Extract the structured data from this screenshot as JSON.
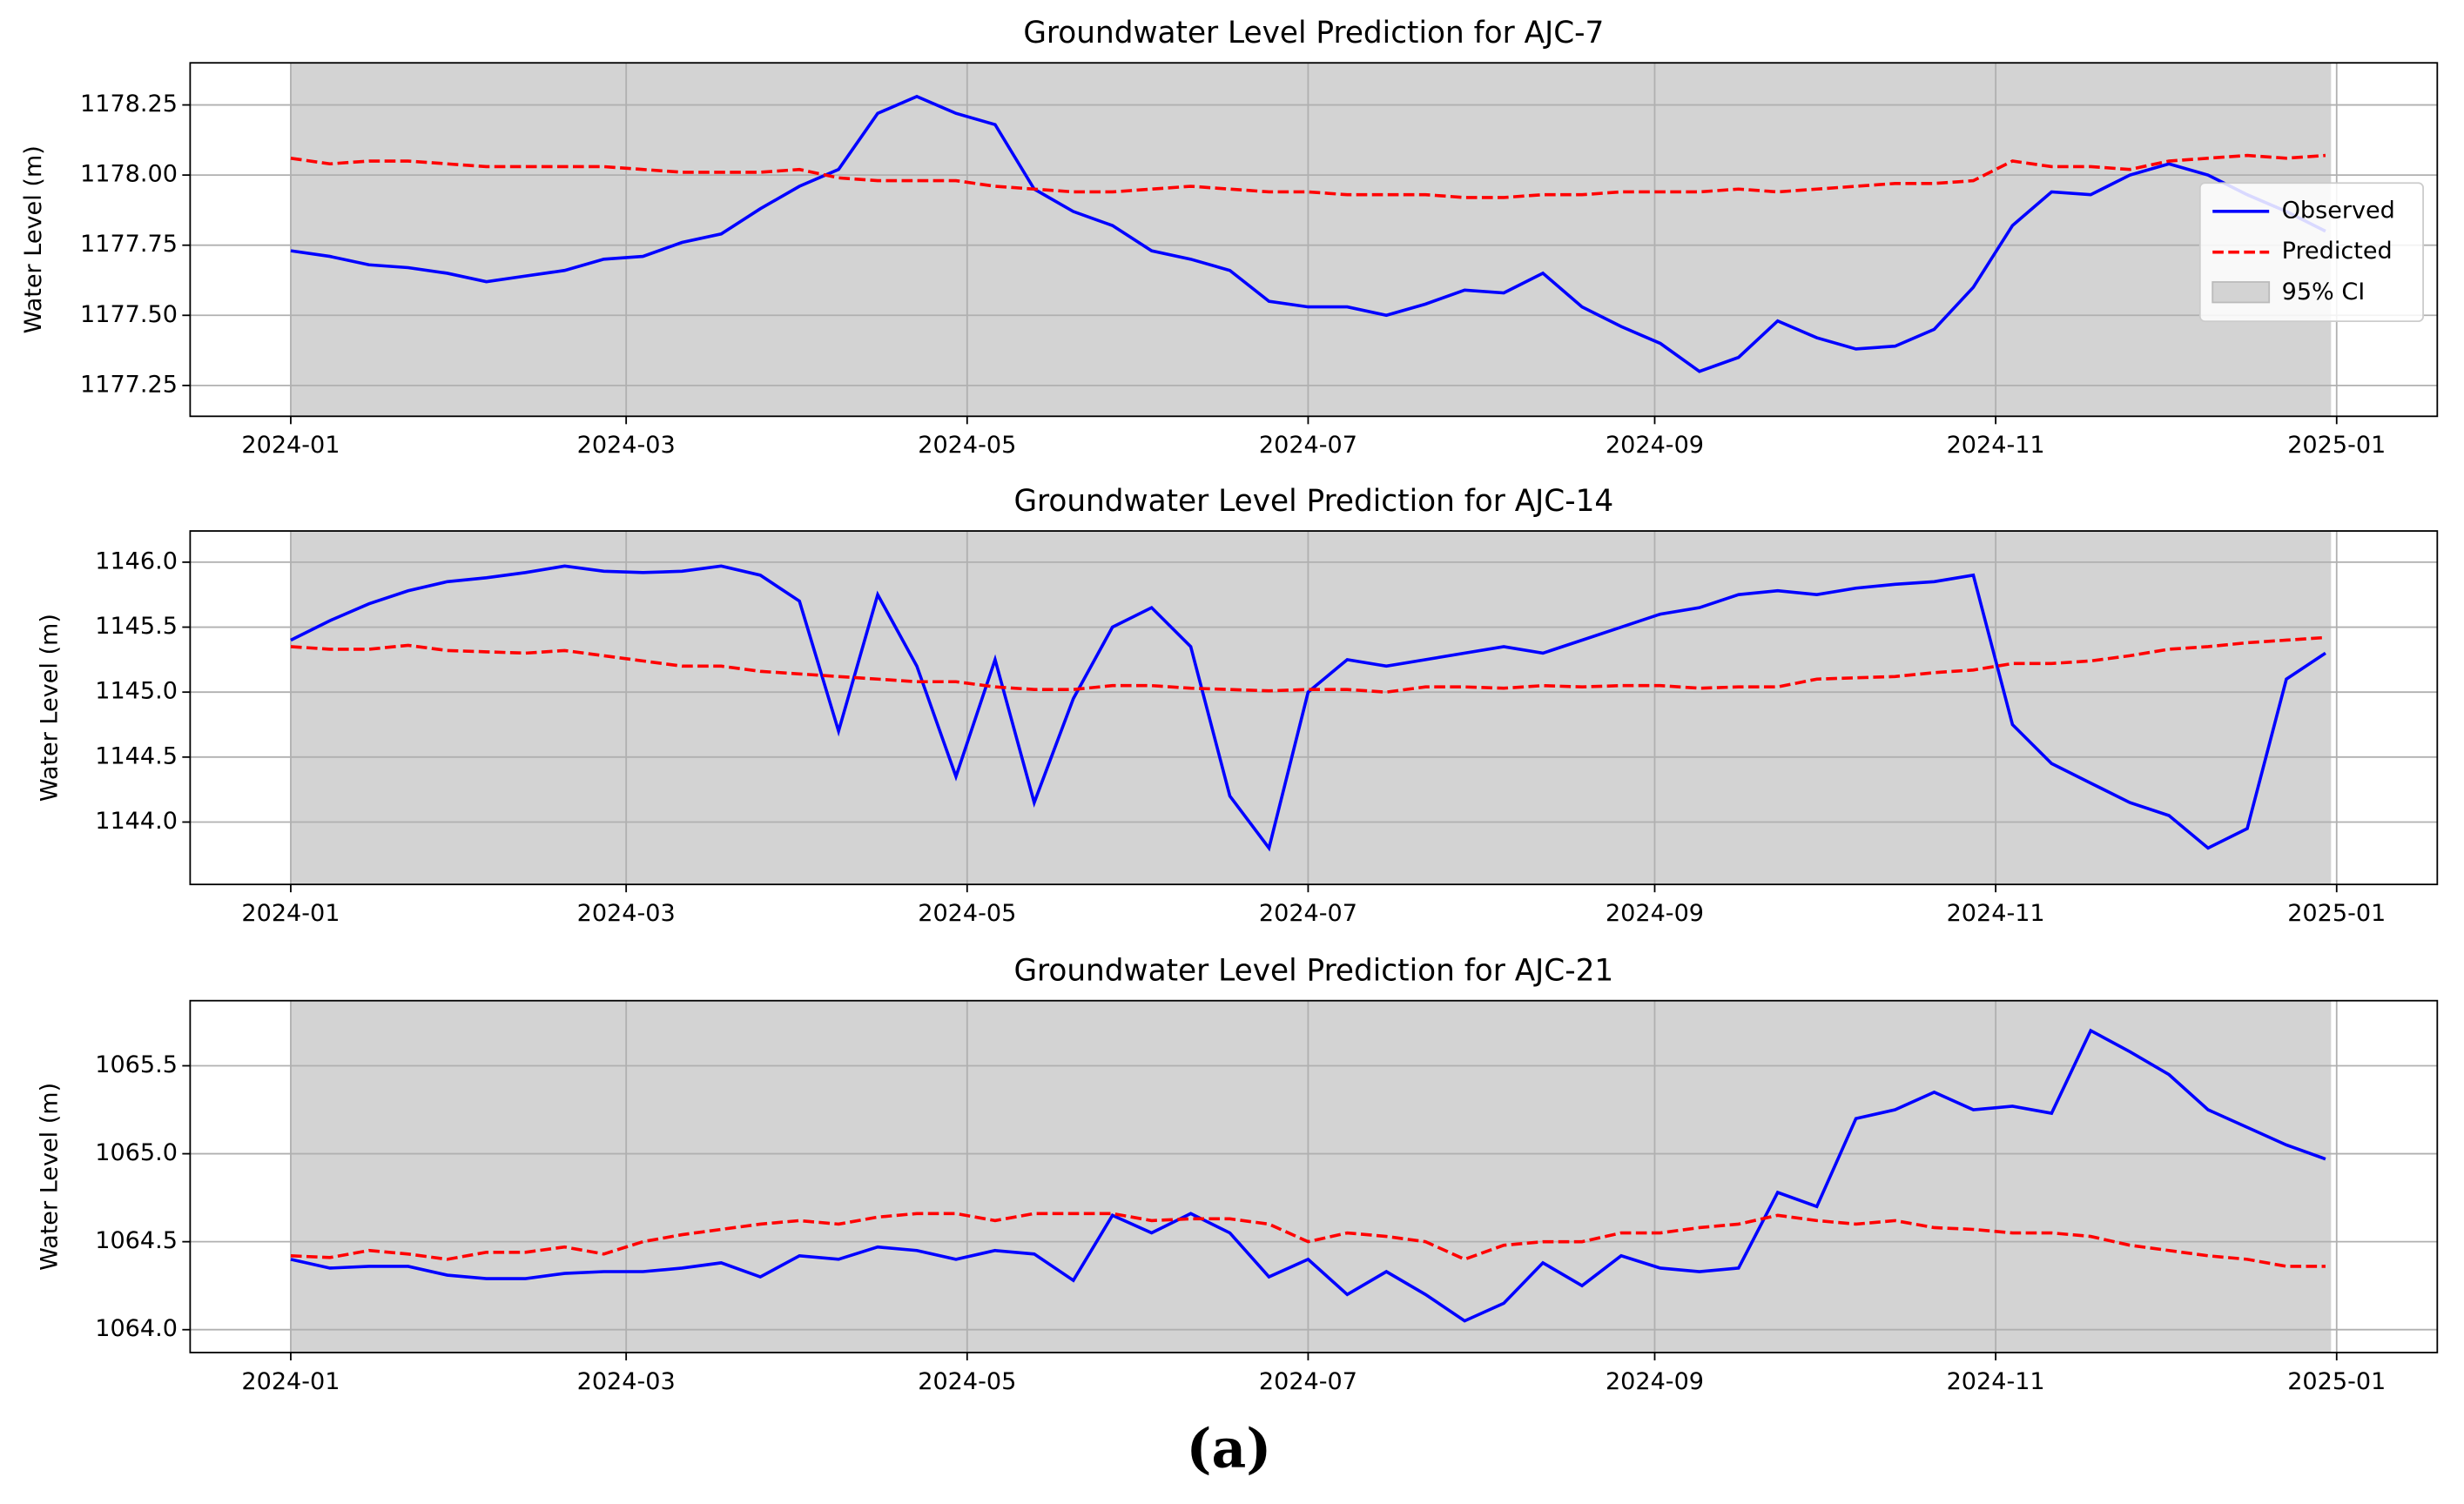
{
  "caption": "(a)",
  "chart_data": [
    {
      "type": "line",
      "title": "Groundwater Level Prediction for AJC-7",
      "ylabel": "Water Level (m)",
      "xlim": [
        -18,
        384
      ],
      "ylim": [
        1177.14,
        1178.4
      ],
      "xticks": [
        {
          "value": 0,
          "label": "2024-01"
        },
        {
          "value": 60,
          "label": "2024-03"
        },
        {
          "value": 121,
          "label": "2024-05"
        },
        {
          "value": 182,
          "label": "2024-07"
        },
        {
          "value": 244,
          "label": "2024-09"
        },
        {
          "value": 305,
          "label": "2024-11"
        },
        {
          "value": 366,
          "label": "2025-01"
        }
      ],
      "yticks": [
        {
          "value": 1177.25,
          "label": "1177.25"
        },
        {
          "value": 1177.5,
          "label": "1177.50"
        },
        {
          "value": 1177.75,
          "label": "1177.75"
        },
        {
          "value": 1178,
          "label": "1178.00"
        },
        {
          "value": 1178.25,
          "label": "1178.25"
        }
      ],
      "grid": true,
      "legend": "center right",
      "ci": {
        "name": "95% CI",
        "color": "#d3d3d3",
        "x": [
          0,
          365
        ]
      },
      "x": [
        0,
        7,
        14,
        21,
        28,
        35,
        42,
        49,
        56,
        63,
        70,
        77,
        84,
        91,
        98,
        105,
        112,
        119,
        126,
        133,
        140,
        147,
        154,
        161,
        168,
        175,
        182,
        189,
        196,
        203,
        210,
        217,
        224,
        231,
        238,
        245,
        252,
        259,
        266,
        273,
        280,
        287,
        294,
        301,
        308,
        315,
        322,
        329,
        336,
        343,
        350,
        357,
        364
      ],
      "series": [
        {
          "name": "Observed",
          "color": "#0000ff",
          "dash": false,
          "values": [
            1177.73,
            1177.71,
            1177.68,
            1177.67,
            1177.65,
            1177.62,
            1177.64,
            1177.66,
            1177.7,
            1177.71,
            1177.76,
            1177.79,
            1177.88,
            1177.96,
            1178.02,
            1178.22,
            1178.28,
            1178.22,
            1178.18,
            1177.95,
            1177.87,
            1177.82,
            1177.73,
            1177.7,
            1177.66,
            1177.55,
            1177.53,
            1177.53,
            1177.5,
            1177.54,
            1177.59,
            1177.58,
            1177.65,
            1177.53,
            1177.46,
            1177.4,
            1177.3,
            1177.35,
            1177.48,
            1177.42,
            1177.38,
            1177.39,
            1177.45,
            1177.6,
            1177.82,
            1177.94,
            1177.93,
            1178.0,
            1178.04,
            1178.0,
            1177.93,
            1177.87,
            1177.8
          ]
        },
        {
          "name": "Predicted",
          "color": "#ff0000",
          "dash": true,
          "values": [
            1178.06,
            1178.04,
            1178.05,
            1178.05,
            1178.04,
            1178.03,
            1178.03,
            1178.03,
            1178.03,
            1178.02,
            1178.01,
            1178.01,
            1178.01,
            1178.02,
            1177.99,
            1177.98,
            1177.98,
            1177.98,
            1177.96,
            1177.95,
            1177.94,
            1177.94,
            1177.95,
            1177.96,
            1177.95,
            1177.94,
            1177.94,
            1177.93,
            1177.93,
            1177.93,
            1177.92,
            1177.92,
            1177.93,
            1177.93,
            1177.94,
            1177.94,
            1177.94,
            1177.95,
            1177.94,
            1177.95,
            1177.96,
            1177.97,
            1177.97,
            1177.98,
            1178.05,
            1178.03,
            1178.03,
            1178.02,
            1178.05,
            1178.06,
            1178.07,
            1178.06,
            1178.07
          ]
        }
      ]
    },
    {
      "type": "line",
      "title": "Groundwater Level Prediction for AJC-14",
      "ylabel": "Water Level (m)",
      "xlim": [
        -18,
        384
      ],
      "ylim": [
        1143.52,
        1146.24
      ],
      "xticks": [
        {
          "value": 0,
          "label": "2024-01"
        },
        {
          "value": 60,
          "label": "2024-03"
        },
        {
          "value": 121,
          "label": "2024-05"
        },
        {
          "value": 182,
          "label": "2024-07"
        },
        {
          "value": 244,
          "label": "2024-09"
        },
        {
          "value": 305,
          "label": "2024-11"
        },
        {
          "value": 366,
          "label": "2025-01"
        }
      ],
      "yticks": [
        {
          "value": 1144,
          "label": "1144.0"
        },
        {
          "value": 1144.5,
          "label": "1144.5"
        },
        {
          "value": 1145,
          "label": "1145.0"
        },
        {
          "value": 1145.5,
          "label": "1145.5"
        },
        {
          "value": 1146,
          "label": "1146.0"
        }
      ],
      "grid": true,
      "ci": {
        "color": "#d3d3d3",
        "x": [
          0,
          365
        ]
      },
      "x": [
        0,
        7,
        14,
        21,
        28,
        35,
        42,
        49,
        56,
        63,
        70,
        77,
        84,
        91,
        98,
        105,
        112,
        119,
        126,
        133,
        140,
        147,
        154,
        161,
        168,
        175,
        182,
        189,
        196,
        203,
        210,
        217,
        224,
        231,
        238,
        245,
        252,
        259,
        266,
        273,
        280,
        287,
        294,
        301,
        308,
        315,
        322,
        329,
        336,
        343,
        350,
        357,
        364
      ],
      "series": [
        {
          "color": "#0000ff",
          "dash": false,
          "values": [
            1145.4,
            1145.55,
            1145.68,
            1145.78,
            1145.85,
            1145.88,
            1145.92,
            1145.97,
            1145.93,
            1145.92,
            1145.93,
            1145.97,
            1145.9,
            1145.7,
            1144.7,
            1145.75,
            1145.2,
            1144.35,
            1145.25,
            1144.15,
            1144.95,
            1145.5,
            1145.65,
            1145.35,
            1144.2,
            1143.8,
            1145.0,
            1145.25,
            1145.2,
            1145.25,
            1145.3,
            1145.35,
            1145.3,
            1145.4,
            1145.5,
            1145.6,
            1145.65,
            1145.75,
            1145.78,
            1145.75,
            1145.8,
            1145.83,
            1145.85,
            1145.9,
            1144.75,
            1144.45,
            1144.3,
            1144.15,
            1144.05,
            1143.8,
            1143.95,
            1145.1,
            1145.3
          ]
        },
        {
          "color": "#ff0000",
          "dash": true,
          "values": [
            1145.35,
            1145.33,
            1145.33,
            1145.36,
            1145.32,
            1145.31,
            1145.3,
            1145.32,
            1145.28,
            1145.24,
            1145.2,
            1145.2,
            1145.16,
            1145.14,
            1145.12,
            1145.1,
            1145.08,
            1145.08,
            1145.04,
            1145.02,
            1145.02,
            1145.05,
            1145.05,
            1145.03,
            1145.02,
            1145.01,
            1145.02,
            1145.02,
            1145.0,
            1145.04,
            1145.04,
            1145.03,
            1145.05,
            1145.04,
            1145.05,
            1145.05,
            1145.03,
            1145.04,
            1145.04,
            1145.1,
            1145.11,
            1145.12,
            1145.15,
            1145.17,
            1145.22,
            1145.22,
            1145.24,
            1145.28,
            1145.33,
            1145.35,
            1145.38,
            1145.4,
            1145.42
          ]
        }
      ]
    },
    {
      "type": "line",
      "title": "Groundwater Level Prediction for AJC-21",
      "ylabel": "Water Level (m)",
      "xlim": [
        -18,
        384
      ],
      "ylim": [
        1063.87,
        1065.87
      ],
      "xticks": [
        {
          "value": 0,
          "label": "2024-01"
        },
        {
          "value": 60,
          "label": "2024-03"
        },
        {
          "value": 121,
          "label": "2024-05"
        },
        {
          "value": 182,
          "label": "2024-07"
        },
        {
          "value": 244,
          "label": "2024-09"
        },
        {
          "value": 305,
          "label": "2024-11"
        },
        {
          "value": 366,
          "label": "2025-01"
        }
      ],
      "yticks": [
        {
          "value": 1064,
          "label": "1064.0"
        },
        {
          "value": 1064.5,
          "label": "1064.5"
        },
        {
          "value": 1065,
          "label": "1065.0"
        },
        {
          "value": 1065.5,
          "label": "1065.5"
        }
      ],
      "grid": true,
      "ci": {
        "color": "#d3d3d3",
        "x": [
          0,
          365
        ]
      },
      "x": [
        0,
        7,
        14,
        21,
        28,
        35,
        42,
        49,
        56,
        63,
        70,
        77,
        84,
        91,
        98,
        105,
        112,
        119,
        126,
        133,
        140,
        147,
        154,
        161,
        168,
        175,
        182,
        189,
        196,
        203,
        210,
        217,
        224,
        231,
        238,
        245,
        252,
        259,
        266,
        273,
        280,
        287,
        294,
        301,
        308,
        315,
        322,
        329,
        336,
        343,
        350,
        357,
        364
      ],
      "series": [
        {
          "color": "#0000ff",
          "dash": false,
          "values": [
            1064.4,
            1064.35,
            1064.36,
            1064.36,
            1064.31,
            1064.29,
            1064.29,
            1064.32,
            1064.33,
            1064.33,
            1064.35,
            1064.38,
            1064.3,
            1064.42,
            1064.4,
            1064.47,
            1064.45,
            1064.4,
            1064.45,
            1064.43,
            1064.28,
            1064.65,
            1064.55,
            1064.66,
            1064.55,
            1064.3,
            1064.4,
            1064.2,
            1064.33,
            1064.2,
            1064.05,
            1064.15,
            1064.38,
            1064.25,
            1064.42,
            1064.35,
            1064.33,
            1064.35,
            1064.78,
            1064.7,
            1065.2,
            1065.25,
            1065.35,
            1065.25,
            1065.27,
            1065.23,
            1065.7,
            1065.58,
            1065.45,
            1065.25,
            1065.15,
            1065.05,
            1064.97
          ]
        },
        {
          "color": "#ff0000",
          "dash": true,
          "values": [
            1064.42,
            1064.41,
            1064.45,
            1064.43,
            1064.4,
            1064.44,
            1064.44,
            1064.47,
            1064.43,
            1064.5,
            1064.54,
            1064.57,
            1064.6,
            1064.62,
            1064.6,
            1064.64,
            1064.66,
            1064.66,
            1064.62,
            1064.66,
            1064.66,
            1064.66,
            1064.62,
            1064.63,
            1064.63,
            1064.6,
            1064.5,
            1064.55,
            1064.53,
            1064.5,
            1064.4,
            1064.48,
            1064.5,
            1064.5,
            1064.55,
            1064.55,
            1064.58,
            1064.6,
            1064.65,
            1064.62,
            1064.6,
            1064.62,
            1064.58,
            1064.57,
            1064.55,
            1064.55,
            1064.53,
            1064.48,
            1064.45,
            1064.42,
            1064.4,
            1064.36,
            1064.36
          ]
        }
      ]
    }
  ]
}
